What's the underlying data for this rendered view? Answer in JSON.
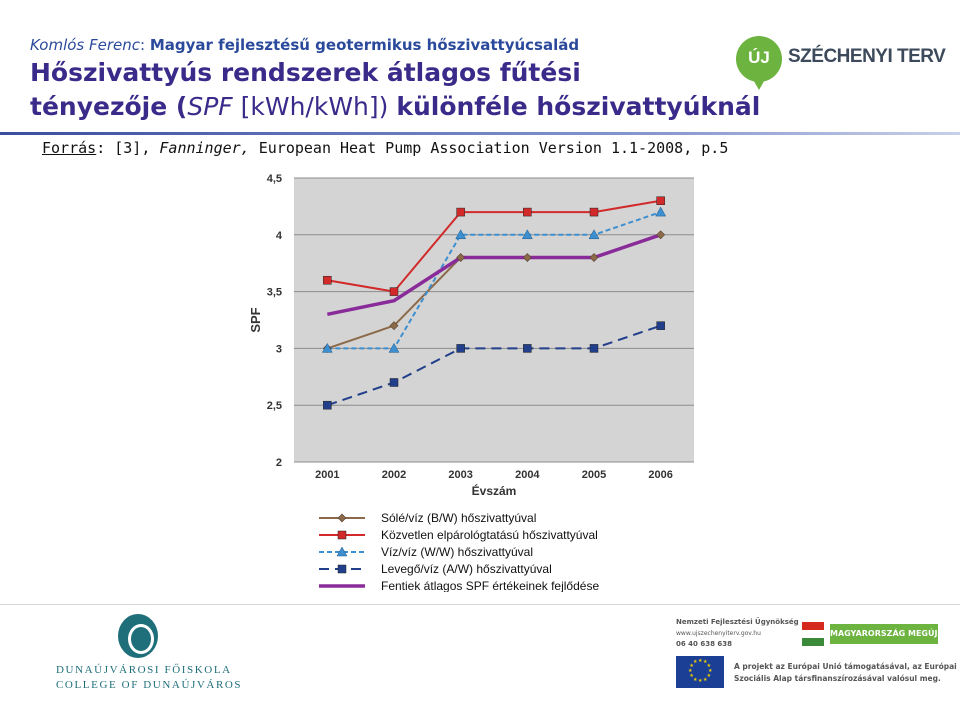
{
  "header": {
    "author": "Komlós Ferenc",
    "author_sep": ": ",
    "subject": "Magyar fejlesztésű geotermikus hőszivattyúcsalád",
    "title_part1": "Hőszivattyús rendszerek átlagos fűtési",
    "title_part2": "tényezője (",
    "title_spf": "SPF",
    "title_unit": " [kWh/kWh]) ",
    "title_part3": "különféle hőszivattyúknál"
  },
  "logo": {
    "badge": "ÚJ",
    "name": "SZÉCHENYI TERV"
  },
  "source": {
    "label": "Forrás",
    "sep": ": [3], ",
    "author": "Fanninger,",
    "rest": " European Heat Pump Association Version 1.1-2008, p.5"
  },
  "chart_data": {
    "type": "line",
    "title": "",
    "xlabel": "Évszám",
    "ylabel": "SPF",
    "x": [
      "2001",
      "2002",
      "2003",
      "2004",
      "2005",
      "2006"
    ],
    "ylim": [
      2,
      4.5
    ],
    "yticks": [
      "2",
      "2,5",
      "3",
      "3,5",
      "4",
      "4,5"
    ],
    "grid": true,
    "legend_position": "bottom",
    "series": [
      {
        "name": "Sólé/víz (B/W) hőszivattyúval",
        "values": [
          3.0,
          3.2,
          3.8,
          3.8,
          3.8,
          4.0
        ],
        "color": "#8b6a4a",
        "dash": "solid",
        "marker": "diamond"
      },
      {
        "name": "Közvetlen elpárológtatású hőszivattyúval",
        "values": [
          3.6,
          3.5,
          4.2,
          4.2,
          4.2,
          4.3
        ],
        "color": "#d22a2a",
        "dash": "solid",
        "marker": "square"
      },
      {
        "name": "Víz/víz (W/W) hőszivattyúval",
        "values": [
          3.0,
          3.0,
          4.0,
          4.0,
          4.0,
          4.2
        ],
        "color": "#3d8fd0",
        "dash": "dashed",
        "marker": "triangle"
      },
      {
        "name": "Levegő/víz (A/W) hőszivattyúval",
        "values": [
          2.5,
          2.7,
          3.0,
          3.0,
          3.0,
          3.2
        ],
        "color": "#213f8a",
        "dash": "longdash",
        "marker": "square"
      },
      {
        "name": "Fentiek átlagos SPF értékeinek fejlődése",
        "values": [
          3.3,
          3.42,
          3.8,
          3.8,
          3.8,
          4.0
        ],
        "color": "#8a2b9a",
        "dash": "solid",
        "marker": "none",
        "thick": true
      }
    ]
  },
  "footer": {
    "college_line1": "DUNAÚJVÁROSI FŐISKOLA",
    "college_line2": "COLLEGE OF DUNAÚJVÁROS",
    "nfu_name": "Nemzeti Fejlesztési Ügynökség",
    "nfu_web": "www.ujszechenyiterv.gov.hu",
    "nfu_phone": "06 40 638 638",
    "megujul": "MAGYARORSZÁG MEGÚJUL",
    "eu_line1": "A projekt az Európai Unió támogatásával, az Európai",
    "eu_line2": "Szociális Alap társfinanszírozásával valósul meg."
  }
}
